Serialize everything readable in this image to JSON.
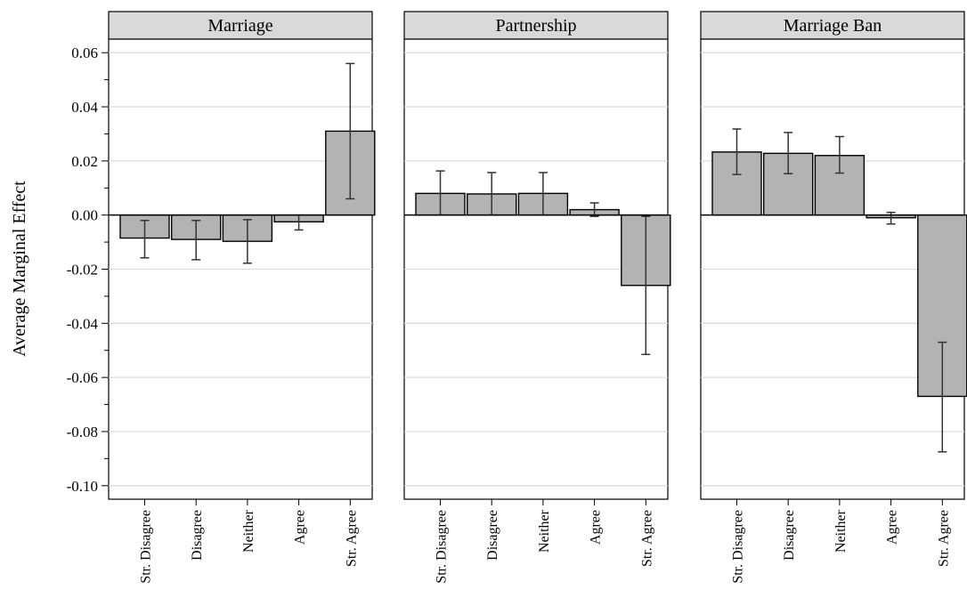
{
  "chart_data": {
    "type": "bar",
    "ylabel": "Average Marginal Effect",
    "ylim": [
      -0.105,
      0.065
    ],
    "yticks": [
      0.06,
      0.04,
      0.02,
      0.0,
      -0.02,
      -0.04,
      -0.06,
      -0.08,
      -0.1
    ],
    "ytick_labels": [
      "0.06",
      "0.04",
      "0.02",
      "0.00",
      "-0.02",
      "-0.04",
      "-0.06",
      "-0.08",
      "-0.10"
    ],
    "grid": true,
    "categories": [
      "Str. Disagree",
      "Disagree",
      "Neither",
      "Agree",
      "Str. Agree"
    ],
    "panels": [
      {
        "title": "Marriage",
        "values": [
          -0.0085,
          -0.009,
          -0.0097,
          -0.0025,
          0.031
        ],
        "ci_low": [
          -0.0158,
          -0.0165,
          -0.0178,
          -0.0055,
          0.006
        ],
        "ci_high": [
          -0.002,
          -0.002,
          -0.0017,
          0.0,
          0.056
        ]
      },
      {
        "title": "Partnership",
        "values": [
          0.008,
          0.0078,
          0.008,
          0.002,
          -0.026
        ],
        "ci_low": [
          0.0,
          0.0,
          0.0,
          -0.0005,
          -0.0515
        ],
        "ci_high": [
          0.0163,
          0.0157,
          0.0157,
          0.0045,
          -0.0005
        ]
      },
      {
        "title": "Marriage Ban",
        "values": [
          0.0233,
          0.0228,
          0.022,
          -0.001,
          -0.067
        ],
        "ci_low": [
          0.015,
          0.0153,
          0.0155,
          -0.0033,
          -0.0875
        ],
        "ci_high": [
          0.0318,
          0.0305,
          0.029,
          0.001,
          -0.047
        ]
      }
    ]
  }
}
